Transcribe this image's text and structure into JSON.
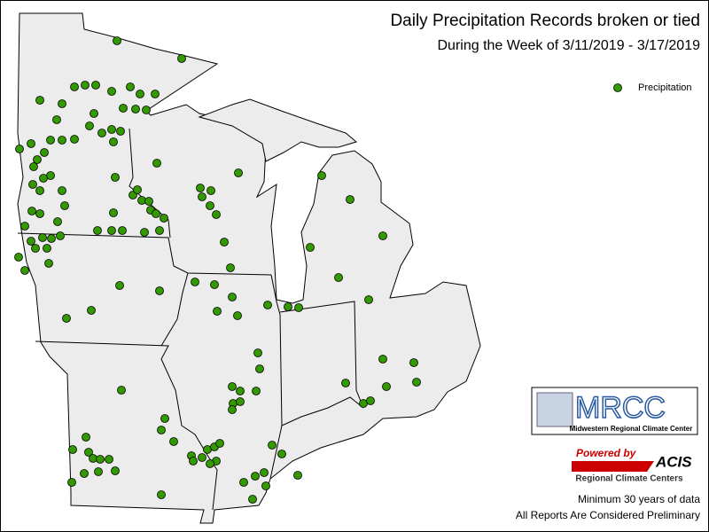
{
  "title": "Daily Precipitation Records broken or tied",
  "subtitle": "During the Week of 3/11/2019 - 3/17/2019",
  "legend": {
    "label": "Precipitation",
    "color": "#339900"
  },
  "logos": {
    "mrcc": "MRCC",
    "mrcc_name": "Midwestern Regional Climate Center",
    "powered_by": "Powered by",
    "acis": "ACIS",
    "rcc": "Regional Climate Centers"
  },
  "notes": [
    "Minimum 30 years of data",
    "All Reports Are Considered Preliminary"
  ]
}
